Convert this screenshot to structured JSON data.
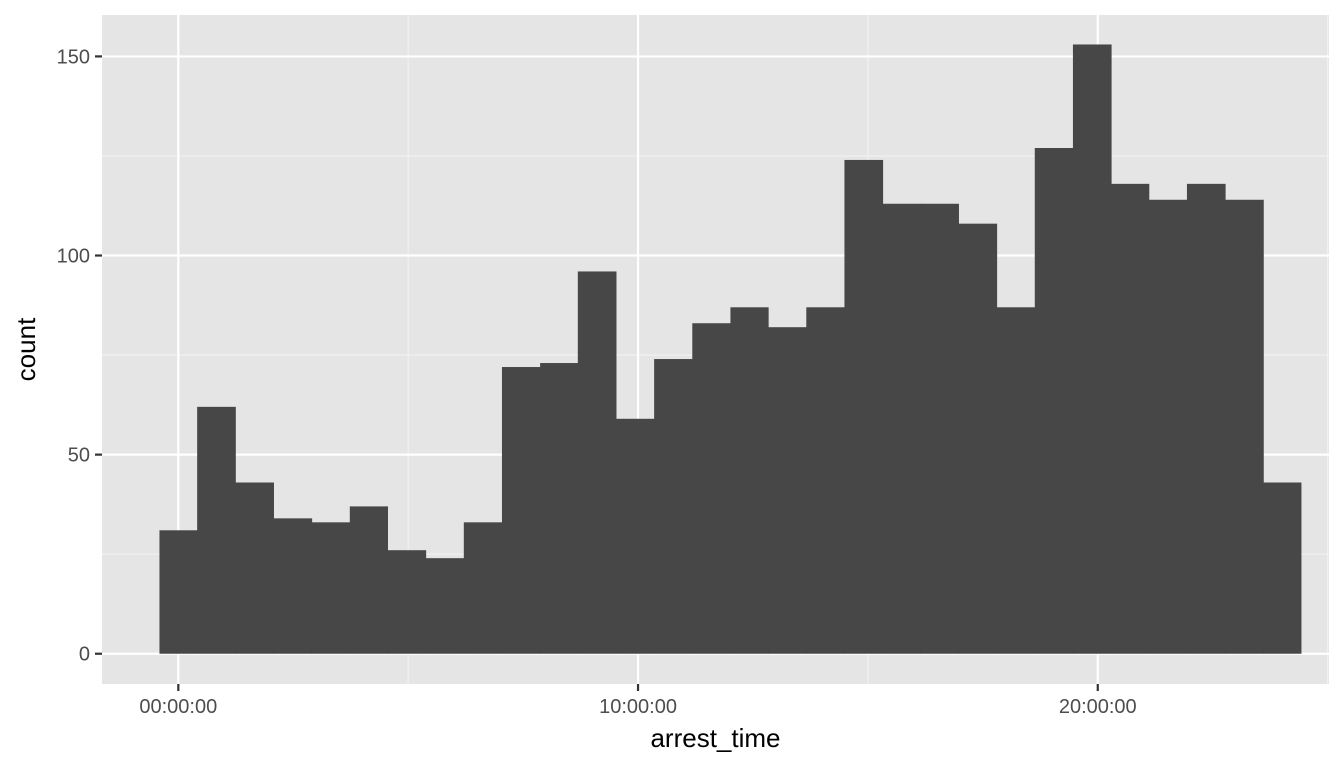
{
  "chart_data": {
    "type": "bar",
    "subtype": "histogram",
    "xlabel": "arrest_time",
    "ylabel": "count",
    "x_unit": "hours since 00:00:00",
    "bin_width_hours": 0.828,
    "xlim": [
      -1.66,
      25.03
    ],
    "ylim": [
      -7.6,
      160.4
    ],
    "x_ticks": [
      {
        "value": 0,
        "label": "00:00:00"
      },
      {
        "value": 10,
        "label": "10:00:00"
      },
      {
        "value": 20,
        "label": "20:00:00"
      }
    ],
    "x_minor_ticks": [
      -5,
      5,
      15,
      25
    ],
    "y_ticks": [
      {
        "value": 0,
        "label": "0"
      },
      {
        "value": 50,
        "label": "50"
      },
      {
        "value": 100,
        "label": "100"
      },
      {
        "value": 150,
        "label": "150"
      }
    ],
    "y_minor_ticks": [
      25,
      75,
      125
    ],
    "grid": true,
    "bins": [
      {
        "start": -0.41,
        "end": 0.41,
        "value": 31
      },
      {
        "start": 0.41,
        "end": 1.24,
        "value": 62
      },
      {
        "start": 1.24,
        "end": 2.07,
        "value": 43
      },
      {
        "start": 2.07,
        "end": 2.9,
        "value": 34
      },
      {
        "start": 2.9,
        "end": 3.73,
        "value": 33
      },
      {
        "start": 3.73,
        "end": 4.55,
        "value": 37
      },
      {
        "start": 4.55,
        "end": 5.38,
        "value": 26
      },
      {
        "start": 5.38,
        "end": 6.21,
        "value": 24
      },
      {
        "start": 6.21,
        "end": 7.04,
        "value": 33
      },
      {
        "start": 7.04,
        "end": 7.87,
        "value": 72
      },
      {
        "start": 7.87,
        "end": 8.69,
        "value": 73
      },
      {
        "start": 8.69,
        "end": 9.52,
        "value": 96
      },
      {
        "start": 9.52,
        "end": 10.35,
        "value": 59
      },
      {
        "start": 10.35,
        "end": 11.18,
        "value": 74
      },
      {
        "start": 11.18,
        "end": 12.01,
        "value": 83
      },
      {
        "start": 12.01,
        "end": 12.83,
        "value": 87
      },
      {
        "start": 12.83,
        "end": 13.66,
        "value": 82
      },
      {
        "start": 13.66,
        "end": 14.49,
        "value": 87
      },
      {
        "start": 14.49,
        "end": 15.32,
        "value": 124
      },
      {
        "start": 15.32,
        "end": 16.15,
        "value": 113
      },
      {
        "start": 16.15,
        "end": 16.97,
        "value": 113
      },
      {
        "start": 16.97,
        "end": 17.8,
        "value": 108
      },
      {
        "start": 17.8,
        "end": 18.63,
        "value": 87
      },
      {
        "start": 18.63,
        "end": 19.46,
        "value": 127
      },
      {
        "start": 19.46,
        "end": 20.29,
        "value": 153
      },
      {
        "start": 20.29,
        "end": 21.11,
        "value": 118
      },
      {
        "start": 21.11,
        "end": 21.94,
        "value": 114
      },
      {
        "start": 21.94,
        "end": 22.77,
        "value": 118
      },
      {
        "start": 22.77,
        "end": 23.6,
        "value": 114
      },
      {
        "start": 23.6,
        "end": 24.42,
        "value": 43
      }
    ],
    "colors": {
      "panel_background": "#e5e5e5",
      "grid_major": "#ffffff",
      "grid_minor": "#f2f2f2",
      "bar_fill": "#474747",
      "tick_label": "#4d4d4d",
      "axis_title": "#000000"
    }
  }
}
